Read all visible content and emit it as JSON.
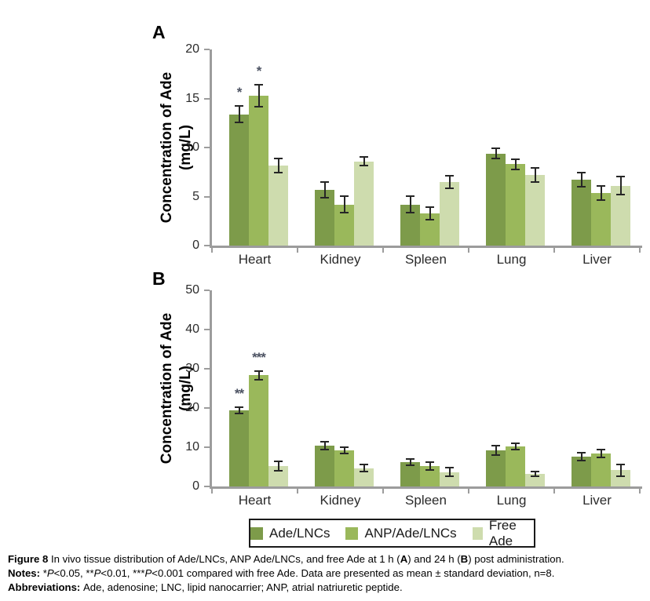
{
  "chart_data": [
    {
      "type": "bar",
      "panel_label": "A",
      "ylabel": "Concentration of Ade (mg/L)",
      "ylabel_lines": [
        "Concentration of Ade",
        "(mg/L)"
      ],
      "xlabel": "",
      "ylim": [
        0,
        20
      ],
      "yticks": [
        0,
        5,
        10,
        15,
        20
      ],
      "grid": false,
      "legend_position": "shared-bottom",
      "categories": [
        "Heart",
        "Kidney",
        "Spleen",
        "Lung",
        "Liver"
      ],
      "series": [
        {
          "name": "Ade/LNCs",
          "color": "#7d9b4a",
          "values": [
            13.4,
            5.7,
            4.2,
            9.4,
            6.7
          ],
          "errors": [
            0.9,
            0.9,
            0.9,
            0.6,
            0.8
          ],
          "significance": [
            "*",
            "",
            "",
            "",
            ""
          ]
        },
        {
          "name": "ANP/Ade/LNCs",
          "color": "#9ab85b",
          "values": [
            15.3,
            4.2,
            3.3,
            8.3,
            5.4
          ],
          "errors": [
            1.2,
            0.9,
            0.7,
            0.6,
            0.8
          ],
          "significance": [
            "*",
            "",
            "",
            "",
            ""
          ]
        },
        {
          "name": "Free Ade",
          "color": "#cedcae",
          "values": [
            8.2,
            8.6,
            6.5,
            7.2,
            6.1
          ],
          "errors": [
            0.8,
            0.5,
            0.7,
            0.8,
            1.0
          ],
          "significance": [
            "",
            "",
            "",
            "",
            ""
          ]
        }
      ]
    },
    {
      "type": "bar",
      "panel_label": "B",
      "ylabel": "Concentration of Ade (mg/L)",
      "ylabel_lines": [
        "Concentration of Ade",
        "(mg/L)"
      ],
      "xlabel": "",
      "ylim": [
        0,
        50
      ],
      "yticks": [
        0,
        10,
        20,
        30,
        40,
        50
      ],
      "grid": false,
      "legend_position": "shared-bottom",
      "categories": [
        "Heart",
        "Kidney",
        "Spleen",
        "Lung",
        "Liver"
      ],
      "series": [
        {
          "name": "Ade/LNCs",
          "color": "#7d9b4a",
          "values": [
            19.5,
            10.5,
            6.2,
            9.3,
            7.6
          ],
          "errors": [
            1.0,
            1.2,
            1.0,
            1.4,
            1.2
          ],
          "significance": [
            "**",
            "",
            "",
            "",
            ""
          ]
        },
        {
          "name": "ANP/Ade/LNCs",
          "color": "#9ab85b",
          "values": [
            28.4,
            9.2,
            5.2,
            10.2,
            8.5
          ],
          "errors": [
            1.3,
            1.0,
            1.2,
            1.0,
            1.2
          ],
          "significance": [
            "***",
            "",
            "",
            "",
            ""
          ]
        },
        {
          "name": "Free Ade",
          "color": "#cedcae",
          "values": [
            5.2,
            4.7,
            3.7,
            3.2,
            4.2
          ],
          "errors": [
            1.4,
            1.1,
            1.3,
            0.8,
            1.7
          ],
          "significance": [
            "",
            "",
            "",
            "",
            ""
          ]
        }
      ]
    }
  ],
  "legend": {
    "items": [
      {
        "label": "Ade/LNCs",
        "color": "#7d9b4a"
      },
      {
        "label": "ANP/Ade/LNCs",
        "color": "#9ab85b"
      },
      {
        "label": "Free Ade",
        "color": "#cedcae"
      }
    ]
  },
  "caption": {
    "lines": [
      {
        "segments": [
          {
            "text": "Figure 8 ",
            "bold": true
          },
          {
            "text": "In vivo tissue distribution of Ade/LNCs, ANP Ade/LNCs, and free Ade at 1 h ("
          },
          {
            "text": "A",
            "bold": true
          },
          {
            "text": ") and 24 h ("
          },
          {
            "text": "B",
            "bold": true
          },
          {
            "text": ") post administration."
          }
        ]
      },
      {
        "segments": [
          {
            "text": "Notes: ",
            "bold": true
          },
          {
            "text": "*"
          },
          {
            "text": "P",
            "italic": true
          },
          {
            "text": "<0.05, **"
          },
          {
            "text": "P",
            "italic": true
          },
          {
            "text": "<0.01, ***"
          },
          {
            "text": "P",
            "italic": true
          },
          {
            "text": "<0.001 compared with free Ade. Data are presented as mean ± standard deviation, n=8."
          }
        ]
      },
      {
        "segments": [
          {
            "text": "Abbreviations: ",
            "bold": true
          },
          {
            "text": "Ade, adenosine; LNC, lipid nanocarrier; ANP, atrial natriuretic peptide."
          }
        ]
      }
    ]
  },
  "colors": {
    "axis": "#9c9c9c",
    "error_bar": "#262626",
    "significance_marker": "#4d5363",
    "bar_dark_green": "#7d9b4a",
    "bar_medium_green": "#9ab85b",
    "bar_light_green": "#cedcae"
  }
}
